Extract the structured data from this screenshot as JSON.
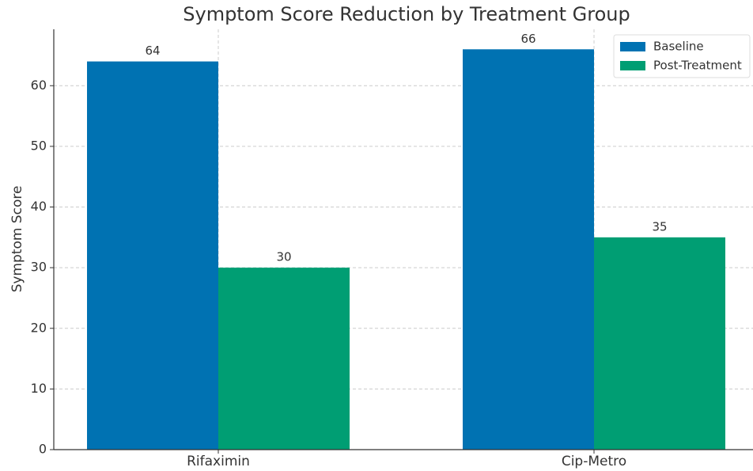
{
  "chart_data": {
    "type": "bar",
    "title": "Symptom Score Reduction by Treatment Group",
    "ylabel": "Symptom Score",
    "categories": [
      "Rifaximin",
      "Cip-Metro"
    ],
    "series": [
      {
        "name": "Baseline",
        "color": "#0072b2",
        "values": [
          64,
          66
        ]
      },
      {
        "name": "Post-Treatment",
        "color": "#009e73",
        "values": [
          30,
          35
        ]
      }
    ],
    "ylim": [
      0,
      69.3
    ],
    "yticks": [
      0,
      10,
      20,
      30,
      40,
      50,
      60
    ],
    "grid": true,
    "legend": "upper right"
  }
}
